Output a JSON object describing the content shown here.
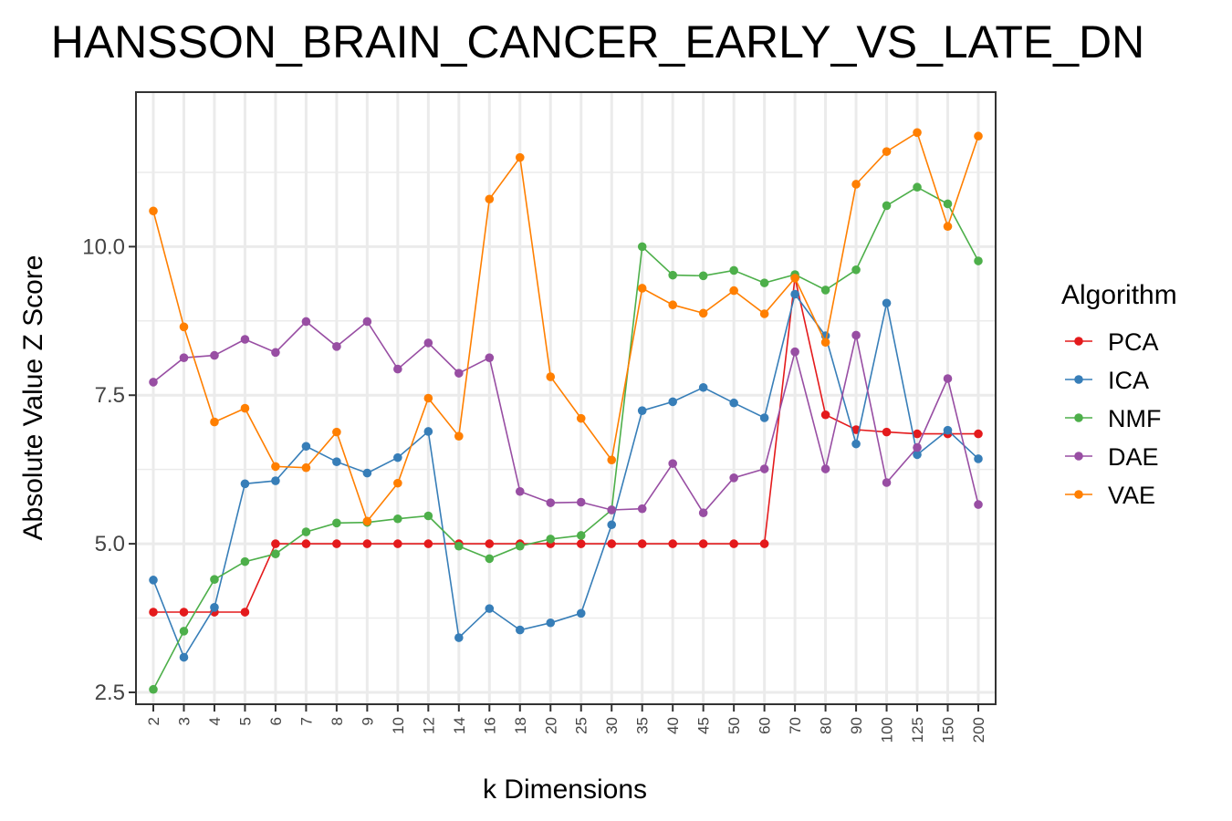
{
  "chart_data": {
    "type": "line",
    "title": "HANSSON_BRAIN_CANCER_EARLY_VS_LATE_DN",
    "xlabel": "k Dimensions",
    "ylabel": "Absolute Value Z Score",
    "categories": [
      "2",
      "3",
      "4",
      "5",
      "6",
      "7",
      "8",
      "9",
      "10",
      "12",
      "14",
      "16",
      "18",
      "20",
      "25",
      "30",
      "35",
      "40",
      "45",
      "50",
      "60",
      "70",
      "80",
      "90",
      "100",
      "125",
      "150",
      "200"
    ],
    "ylim": [
      2.3,
      12.6
    ],
    "yticks": [
      2.5,
      5.0,
      7.5,
      10.0
    ],
    "ytick_labels": [
      "2.5",
      "5.0",
      "7.5",
      "10.0"
    ],
    "grid": true,
    "legend_title": "Algorithm",
    "legend_position": "right",
    "series": [
      {
        "name": "PCA",
        "color": "#E41A1C",
        "values": [
          3.85,
          3.85,
          3.85,
          3.85,
          5.0,
          5.0,
          5.0,
          5.0,
          5.0,
          5.0,
          5.0,
          5.0,
          5.0,
          5.0,
          5.0,
          5.0,
          5.0,
          5.0,
          5.0,
          5.0,
          5.0,
          9.48,
          7.17,
          6.92,
          6.88,
          6.85,
          6.85,
          6.85
        ]
      },
      {
        "name": "ICA",
        "color": "#377EB8",
        "values": [
          4.39,
          3.09,
          3.93,
          6.01,
          6.06,
          6.64,
          6.38,
          6.19,
          6.45,
          6.89,
          3.42,
          3.91,
          3.55,
          3.67,
          3.83,
          5.32,
          7.24,
          7.39,
          7.63,
          7.37,
          7.12,
          9.2,
          8.5,
          6.68,
          9.05,
          6.5,
          6.91,
          6.43
        ]
      },
      {
        "name": "NMF",
        "color": "#4DAF4A",
        "values": [
          2.55,
          3.53,
          4.4,
          4.7,
          4.83,
          5.2,
          5.35,
          5.36,
          5.42,
          5.47,
          4.96,
          4.75,
          4.96,
          5.08,
          5.14,
          5.57,
          10.0,
          9.52,
          9.51,
          9.6,
          9.39,
          9.53,
          9.27,
          9.61,
          10.69,
          11.0,
          10.72,
          9.76
        ]
      },
      {
        "name": "DAE",
        "color": "#984EA3",
        "values": [
          7.72,
          8.13,
          8.17,
          8.44,
          8.22,
          8.74,
          8.32,
          8.74,
          7.94,
          8.38,
          7.87,
          8.13,
          5.88,
          5.69,
          5.7,
          5.57,
          5.59,
          6.35,
          5.52,
          6.11,
          6.26,
          8.23,
          6.26,
          8.51,
          6.03,
          6.62,
          7.78,
          5.66
        ]
      },
      {
        "name": "VAE",
        "color": "#FF7F00",
        "values": [
          10.6,
          8.65,
          7.05,
          7.28,
          6.3,
          6.28,
          6.88,
          5.38,
          6.02,
          7.45,
          6.81,
          10.8,
          11.5,
          7.81,
          7.11,
          6.41,
          9.3,
          9.02,
          8.88,
          9.26,
          8.87,
          9.47,
          8.39,
          11.05,
          11.6,
          11.92,
          10.34,
          11.86
        ]
      }
    ]
  }
}
